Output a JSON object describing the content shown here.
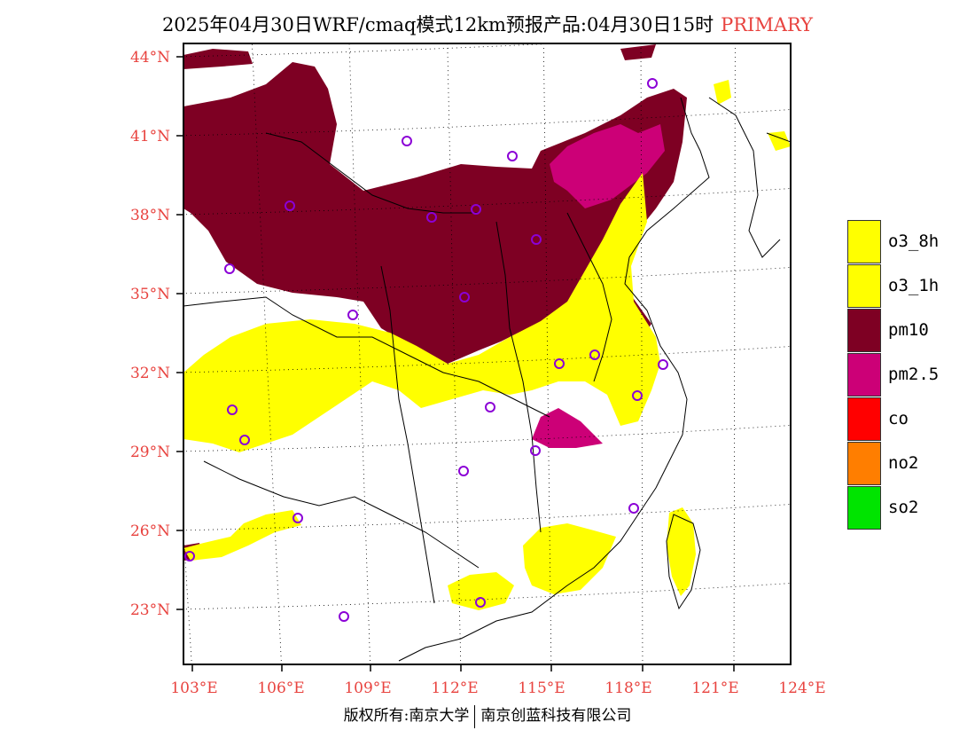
{
  "title": {
    "main": "2025年04月30日WRF/cmaq模式12km预报产品:04月30日15时",
    "tag": "PRIMARY"
  },
  "lat_labels": [
    "44°N",
    "41°N",
    "38°N",
    "35°N",
    "32°N",
    "29°N",
    "26°N",
    "23°N"
  ],
  "lon_labels": [
    "103°E",
    "106°E",
    "109°E",
    "112°E",
    "115°E",
    "118°E",
    "121°E",
    "124°E"
  ],
  "legend": [
    {
      "label": "o3_8h",
      "color": "#ffff00"
    },
    {
      "label": "o3_1h",
      "color": "#ffff00"
    },
    {
      "label": "pm10",
      "color": "#7e0023"
    },
    {
      "label": "pm2.5",
      "color": "#cc0077"
    },
    {
      "label": "co",
      "color": "#ff0000"
    },
    {
      "label": "no2",
      "color": "#ff7e00"
    },
    {
      "label": "so2",
      "color": "#00e400"
    }
  ],
  "footer": {
    "left": "版权所有:南京大学",
    "right": "南京创蓝科技有限公司"
  },
  "colors": {
    "pm10": "#7e0023",
    "pm25": "#cc0077",
    "o3": "#ffff00",
    "station_marker": "#8b00d6",
    "label": "#e8433f"
  }
}
